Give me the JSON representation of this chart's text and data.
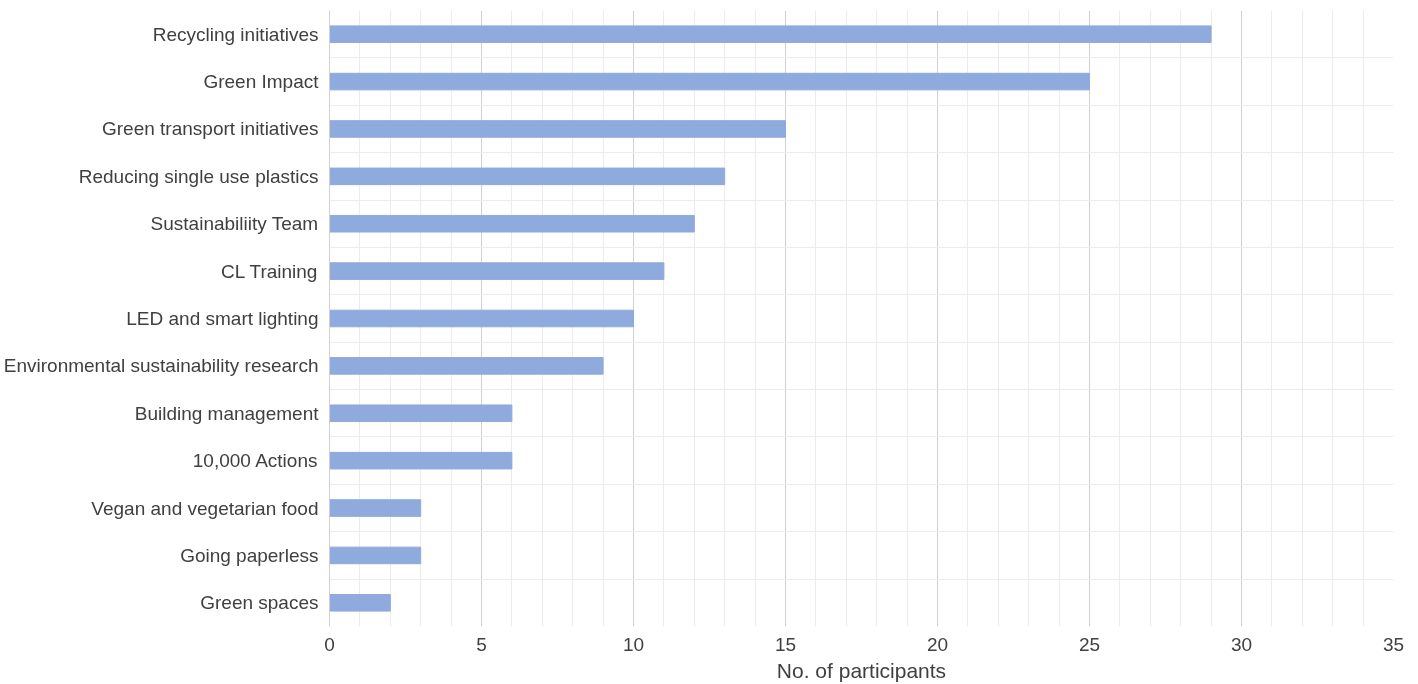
{
  "chart_data": {
    "type": "bar",
    "orientation": "horizontal",
    "xlabel": "No. of participants",
    "categories": [
      "Recycling initiatives",
      "Green Impact",
      "Green transport initiatives",
      "Reducing single use plastics",
      "Sustainabiliity Team",
      "CL Training",
      "LED and smart lighting",
      "Environmental sustainability research",
      "Building management",
      "10,000 Actions",
      "Vegan and vegetarian food",
      "Going paperless",
      "Green spaces"
    ],
    "values": [
      29,
      25,
      15,
      13,
      12,
      11,
      10,
      9,
      6,
      6,
      3,
      3,
      2
    ],
    "color": "#8faadc",
    "xlim": [
      0,
      35
    ],
    "xticks": [
      0,
      5,
      10,
      15,
      20,
      25,
      30,
      35
    ],
    "grid": true
  }
}
